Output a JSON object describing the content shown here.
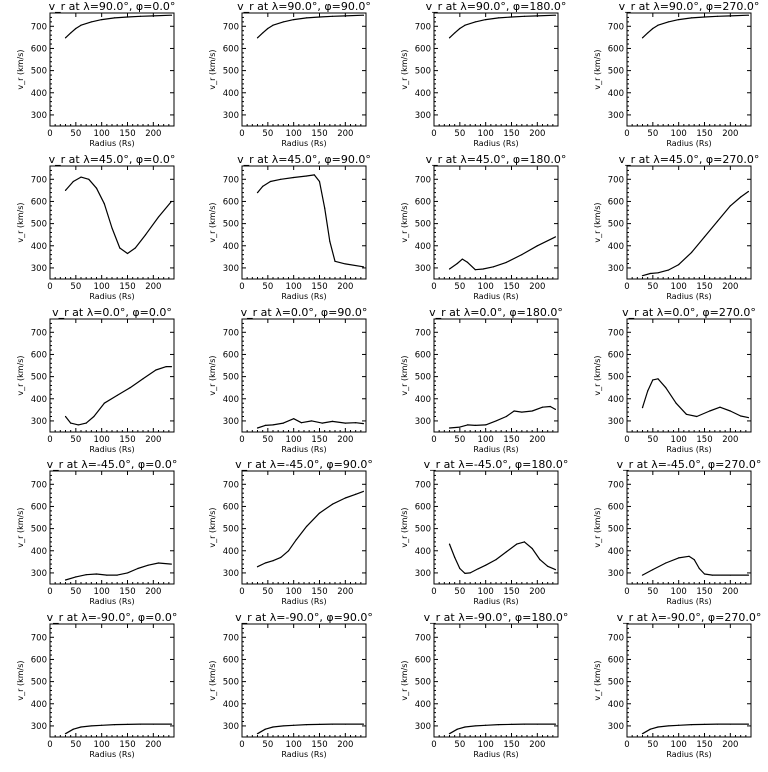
{
  "chart_data": [
    {
      "type": "line",
      "title": "v_r at λ=90.0°, φ=0.0°",
      "xlabel": "Radius (Rs)",
      "ylabel": "v_r (km/s)",
      "xlim": [
        0,
        240
      ],
      "ylim": [
        250,
        760
      ],
      "xticks": [
        0,
        50,
        100,
        150,
        200
      ],
      "yticks": [
        300,
        400,
        500,
        600,
        700
      ],
      "x": [
        30,
        40,
        50,
        60,
        80,
        100,
        125,
        150,
        175,
        200,
        235
      ],
      "y": [
        648,
        670,
        690,
        705,
        720,
        730,
        738,
        742,
        745,
        747,
        750
      ]
    },
    {
      "type": "line",
      "title": "v_r at λ=90.0°, φ=90.0°",
      "xlabel": "Radius (Rs)",
      "ylabel": "v_r (km/s)",
      "xlim": [
        0,
        240
      ],
      "ylim": [
        250,
        760
      ],
      "xticks": [
        0,
        50,
        100,
        150,
        200
      ],
      "yticks": [
        300,
        400,
        500,
        600,
        700
      ],
      "x": [
        30,
        40,
        50,
        60,
        80,
        100,
        125,
        150,
        175,
        200,
        235
      ],
      "y": [
        648,
        670,
        690,
        705,
        720,
        730,
        738,
        742,
        745,
        747,
        750
      ]
    },
    {
      "type": "line",
      "title": "v_r at λ=90.0°, φ=180.0°",
      "xlabel": "Radius (Rs)",
      "ylabel": "v_r (km/s)",
      "xlim": [
        0,
        240
      ],
      "ylim": [
        250,
        760
      ],
      "xticks": [
        0,
        50,
        100,
        150,
        200
      ],
      "yticks": [
        300,
        400,
        500,
        600,
        700
      ],
      "x": [
        30,
        40,
        50,
        60,
        80,
        100,
        125,
        150,
        175,
        200,
        235
      ],
      "y": [
        648,
        670,
        690,
        705,
        720,
        730,
        738,
        742,
        745,
        747,
        750
      ]
    },
    {
      "type": "line",
      "title": "v_r at λ=90.0°, φ=270.0°",
      "xlabel": "Radius (Rs)",
      "ylabel": "v_r (km/s)",
      "xlim": [
        0,
        240
      ],
      "ylim": [
        250,
        760
      ],
      "xticks": [
        0,
        50,
        100,
        150,
        200
      ],
      "yticks": [
        300,
        400,
        500,
        600,
        700
      ],
      "x": [
        30,
        40,
        50,
        60,
        80,
        100,
        125,
        150,
        175,
        200,
        235
      ],
      "y": [
        648,
        670,
        690,
        705,
        720,
        730,
        738,
        742,
        745,
        747,
        750
      ]
    },
    {
      "type": "line",
      "title": "v_r at λ=45.0°, φ=0.0°",
      "xlabel": "Radius (Rs)",
      "ylabel": "v_r (km/s)",
      "xlim": [
        0,
        240
      ],
      "ylim": [
        250,
        760
      ],
      "xticks": [
        0,
        50,
        100,
        150,
        200
      ],
      "yticks": [
        300,
        400,
        500,
        600,
        700
      ],
      "x": [
        30,
        45,
        60,
        75,
        90,
        105,
        120,
        135,
        150,
        165,
        185,
        210,
        235
      ],
      "y": [
        650,
        690,
        710,
        700,
        660,
        590,
        480,
        390,
        365,
        390,
        450,
        530,
        600
      ]
    },
    {
      "type": "line",
      "title": "v_r at λ=45.0°, φ=90.0°",
      "xlabel": "Radius (Rs)",
      "ylabel": "v_r (km/s)",
      "xlim": [
        0,
        240
      ],
      "ylim": [
        250,
        760
      ],
      "xticks": [
        0,
        50,
        100,
        150,
        200
      ],
      "yticks": [
        300,
        400,
        500,
        600,
        700
      ],
      "x": [
        30,
        40,
        55,
        75,
        100,
        125,
        140,
        150,
        160,
        170,
        180,
        200,
        235
      ],
      "y": [
        640,
        668,
        690,
        700,
        708,
        715,
        720,
        690,
        570,
        420,
        330,
        318,
        305
      ]
    },
    {
      "type": "line",
      "title": "v_r at λ=45.0°, φ=180.0°",
      "xlabel": "Radius (Rs)",
      "ylabel": "v_r (km/s)",
      "xlim": [
        0,
        240
      ],
      "ylim": [
        250,
        760
      ],
      "xticks": [
        0,
        50,
        100,
        150,
        200
      ],
      "yticks": [
        300,
        400,
        500,
        600,
        700
      ],
      "x": [
        30,
        45,
        55,
        65,
        80,
        95,
        115,
        140,
        170,
        200,
        235
      ],
      "y": [
        295,
        320,
        340,
        325,
        292,
        295,
        305,
        325,
        360,
        400,
        440
      ]
    },
    {
      "type": "line",
      "title": "v_r at λ=45.0°, φ=270.0°",
      "xlabel": "Radius (Rs)",
      "ylabel": "v_r (km/s)",
      "xlim": [
        0,
        240
      ],
      "ylim": [
        250,
        760
      ],
      "xticks": [
        0,
        50,
        100,
        150,
        200
      ],
      "yticks": [
        300,
        400,
        500,
        600,
        700
      ],
      "x": [
        30,
        45,
        60,
        80,
        100,
        125,
        150,
        175,
        200,
        220,
        235
      ],
      "y": [
        265,
        275,
        278,
        290,
        315,
        370,
        440,
        510,
        580,
        620,
        645
      ]
    },
    {
      "type": "line",
      "title": "v_r at λ=0.0°, φ=0.0°",
      "xlabel": "Radius (Rs)",
      "ylabel": "v_r (km/s)",
      "xlim": [
        0,
        240
      ],
      "ylim": [
        250,
        760
      ],
      "xticks": [
        0,
        50,
        100,
        150,
        200
      ],
      "yticks": [
        300,
        400,
        500,
        600,
        700
      ],
      "x": [
        30,
        40,
        55,
        70,
        85,
        105,
        130,
        155,
        180,
        205,
        225,
        235
      ],
      "y": [
        320,
        290,
        282,
        290,
        320,
        380,
        415,
        450,
        490,
        530,
        545,
        545
      ]
    },
    {
      "type": "line",
      "title": "v_r at λ=0.0°, φ=90.0°",
      "xlabel": "Radius (Rs)",
      "ylabel": "v_r (km/s)",
      "xlim": [
        0,
        240
      ],
      "ylim": [
        250,
        760
      ],
      "xticks": [
        0,
        50,
        100,
        150,
        200
      ],
      "yticks": [
        300,
        400,
        500,
        600,
        700
      ],
      "x": [
        30,
        45,
        60,
        80,
        100,
        115,
        135,
        155,
        175,
        200,
        220,
        235
      ],
      "y": [
        268,
        280,
        282,
        290,
        310,
        292,
        300,
        290,
        298,
        290,
        292,
        288
      ]
    },
    {
      "type": "line",
      "title": "v_r at λ=0.0°, φ=180.0°",
      "xlabel": "Radius (Rs)",
      "ylabel": "v_r (km/s)",
      "xlim": [
        0,
        240
      ],
      "ylim": [
        250,
        760
      ],
      "xticks": [
        0,
        50,
        100,
        150,
        200
      ],
      "yticks": [
        300,
        400,
        500,
        600,
        700
      ],
      "x": [
        30,
        50,
        65,
        80,
        100,
        120,
        140,
        155,
        170,
        190,
        210,
        225,
        235
      ],
      "y": [
        268,
        272,
        282,
        280,
        282,
        300,
        320,
        345,
        340,
        345,
        362,
        365,
        352
      ]
    },
    {
      "type": "line",
      "title": "v_r at λ=0.0°, φ=270.0°",
      "xlabel": "Radius (Rs)",
      "ylabel": "v_r (km/s)",
      "xlim": [
        0,
        240
      ],
      "ylim": [
        250,
        760
      ],
      "xticks": [
        0,
        50,
        100,
        150,
        200
      ],
      "yticks": [
        300,
        400,
        500,
        600,
        700
      ],
      "x": [
        30,
        40,
        50,
        60,
        75,
        95,
        115,
        135,
        160,
        180,
        200,
        220,
        235
      ],
      "y": [
        360,
        435,
        485,
        490,
        450,
        380,
        330,
        320,
        345,
        362,
        345,
        322,
        315
      ]
    },
    {
      "type": "line",
      "title": "v_r at λ=-45.0°, φ=0.0°",
      "xlabel": "Radius (Rs)",
      "ylabel": "v_r (km/s)",
      "xlim": [
        0,
        240
      ],
      "ylim": [
        250,
        760
      ],
      "xticks": [
        0,
        50,
        100,
        150,
        200
      ],
      "yticks": [
        300,
        400,
        500,
        600,
        700
      ],
      "x": [
        30,
        50,
        70,
        90,
        110,
        130,
        150,
        170,
        190,
        210,
        235
      ],
      "y": [
        268,
        282,
        292,
        295,
        290,
        290,
        300,
        320,
        335,
        345,
        340
      ]
    },
    {
      "type": "line",
      "title": "v_r at λ=-45.0°, φ=90.0°",
      "xlabel": "Radius (Rs)",
      "ylabel": "v_r (km/s)",
      "xlim": [
        0,
        240
      ],
      "ylim": [
        250,
        760
      ],
      "xticks": [
        0,
        50,
        100,
        150,
        200
      ],
      "yticks": [
        300,
        400,
        500,
        600,
        700
      ],
      "x": [
        30,
        45,
        60,
        75,
        90,
        105,
        125,
        150,
        175,
        200,
        220,
        235
      ],
      "y": [
        328,
        345,
        355,
        370,
        400,
        450,
        510,
        570,
        610,
        638,
        655,
        668
      ]
    },
    {
      "type": "line",
      "title": "v_r at λ=-45.0°, φ=180.0°",
      "xlabel": "Radius (Rs)",
      "ylabel": "v_r (km/s)",
      "xlim": [
        0,
        240
      ],
      "ylim": [
        250,
        760
      ],
      "xticks": [
        0,
        50,
        100,
        150,
        200
      ],
      "yticks": [
        300,
        400,
        500,
        600,
        700
      ],
      "x": [
        30,
        40,
        50,
        60,
        70,
        85,
        100,
        120,
        140,
        160,
        175,
        190,
        205,
        220,
        235
      ],
      "y": [
        430,
        370,
        320,
        298,
        300,
        318,
        335,
        360,
        395,
        430,
        440,
        410,
        360,
        330,
        315
      ]
    },
    {
      "type": "line",
      "title": "v_r at λ=-45.0°, φ=270.0°",
      "xlabel": "Radius (Rs)",
      "ylabel": "v_r (km/s)",
      "xlim": [
        0,
        240
      ],
      "ylim": [
        250,
        760
      ],
      "xticks": [
        0,
        50,
        100,
        150,
        200
      ],
      "yticks": [
        300,
        400,
        500,
        600,
        700
      ],
      "x": [
        30,
        50,
        75,
        100,
        120,
        130,
        140,
        150,
        165,
        200,
        235
      ],
      "y": [
        290,
        315,
        345,
        368,
        375,
        360,
        320,
        295,
        290,
        290,
        290
      ]
    },
    {
      "type": "line",
      "title": "v_r at λ=-90.0°, φ=0.0°",
      "xlabel": "Radius (Rs)",
      "ylabel": "v_r (km/s)",
      "xlim": [
        0,
        240
      ],
      "ylim": [
        250,
        760
      ],
      "xticks": [
        0,
        50,
        100,
        150,
        200
      ],
      "yticks": [
        300,
        400,
        500,
        600,
        700
      ],
      "x": [
        30,
        45,
        60,
        80,
        100,
        125,
        150,
        175,
        200,
        235
      ],
      "y": [
        265,
        285,
        295,
        300,
        303,
        306,
        307,
        308,
        308,
        308
      ]
    },
    {
      "type": "line",
      "title": "v_r at λ=-90.0°, φ=90.0°",
      "xlabel": "Radius (Rs)",
      "ylabel": "v_r (km/s)",
      "xlim": [
        0,
        240
      ],
      "ylim": [
        250,
        760
      ],
      "xticks": [
        0,
        50,
        100,
        150,
        200
      ],
      "yticks": [
        300,
        400,
        500,
        600,
        700
      ],
      "x": [
        30,
        45,
        60,
        80,
        100,
        125,
        150,
        175,
        200,
        235
      ],
      "y": [
        265,
        285,
        295,
        300,
        303,
        306,
        307,
        308,
        308,
        308
      ]
    },
    {
      "type": "line",
      "title": "v_r at λ=-90.0°, φ=180.0°",
      "xlabel": "Radius (Rs)",
      "ylabel": "v_r (km/s)",
      "xlim": [
        0,
        240
      ],
      "ylim": [
        250,
        760
      ],
      "xticks": [
        0,
        50,
        100,
        150,
        200
      ],
      "yticks": [
        300,
        400,
        500,
        600,
        700
      ],
      "x": [
        30,
        45,
        60,
        80,
        100,
        125,
        150,
        175,
        200,
        235
      ],
      "y": [
        265,
        285,
        295,
        300,
        303,
        306,
        307,
        308,
        308,
        308
      ]
    },
    {
      "type": "line",
      "title": "v_r at λ=-90.0°, φ=270.0°",
      "xlabel": "Radius (Rs)",
      "ylabel": "v_r (km/s)",
      "xlim": [
        0,
        240
      ],
      "ylim": [
        250,
        760
      ],
      "xticks": [
        0,
        50,
        100,
        150,
        200
      ],
      "yticks": [
        300,
        400,
        500,
        600,
        700
      ],
      "x": [
        30,
        45,
        60,
        80,
        100,
        125,
        150,
        175,
        200,
        235
      ],
      "y": [
        265,
        285,
        295,
        300,
        303,
        306,
        307,
        308,
        308,
        308
      ]
    }
  ]
}
